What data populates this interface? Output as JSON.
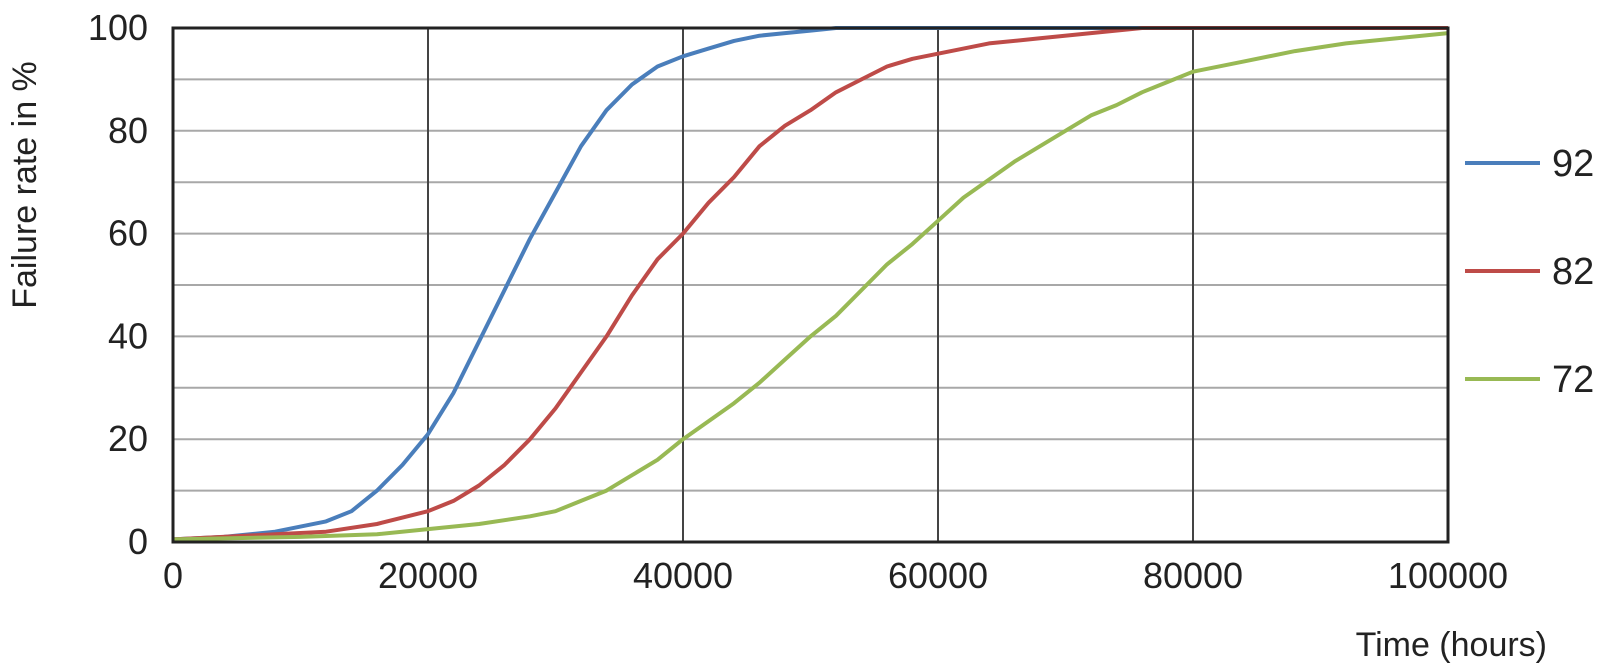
{
  "chart_data": {
    "type": "line",
    "title": "",
    "xlabel": "Time (hours)",
    "ylabel": "Failure rate in %",
    "xlim": [
      0,
      100000
    ],
    "ylim": [
      0,
      100
    ],
    "xticks": [
      "0",
      "20000",
      "40000",
      "60000",
      "80000",
      "100000"
    ],
    "yticks": [
      "0",
      "20",
      "40",
      "60",
      "80",
      "100"
    ],
    "grid": {
      "horizontal_minor_step": 10,
      "vertical_step": 20000
    },
    "legend_position": "right",
    "series": [
      {
        "name": "92",
        "color": "#4a7ebb",
        "x": [
          0,
          4000,
          8000,
          10000,
          12000,
          14000,
          16000,
          18000,
          20000,
          22000,
          24000,
          26000,
          28000,
          30000,
          32000,
          34000,
          36000,
          38000,
          40000,
          42000,
          44000,
          46000,
          48000,
          50000,
          52000,
          60000,
          70000,
          80000,
          90000,
          100000
        ],
        "y": [
          0.5,
          1,
          2,
          3,
          4,
          6,
          10,
          15,
          21,
          29,
          39,
          49,
          59,
          68,
          77,
          84,
          89,
          92.5,
          94.5,
          96,
          97.5,
          98.5,
          99,
          99.5,
          100,
          100,
          100,
          100,
          100,
          100
        ]
      },
      {
        "name": "82",
        "color": "#be4b48",
        "x": [
          0,
          8000,
          12000,
          16000,
          20000,
          22000,
          24000,
          26000,
          28000,
          30000,
          32000,
          34000,
          36000,
          38000,
          40000,
          42000,
          44000,
          46000,
          48000,
          50000,
          52000,
          54000,
          56000,
          58000,
          60000,
          64000,
          68000,
          72000,
          76000,
          100000
        ],
        "y": [
          0.5,
          1.5,
          2,
          3.5,
          6,
          8,
          11,
          15,
          20,
          26,
          33,
          40,
          48,
          55,
          60,
          66,
          71,
          77,
          81,
          84,
          87.5,
          90,
          92.5,
          94,
          95,
          97,
          98,
          99,
          100,
          100
        ]
      },
      {
        "name": "72",
        "color": "#98b954",
        "x": [
          0,
          10000,
          16000,
          20000,
          24000,
          28000,
          30000,
          32000,
          34000,
          36000,
          38000,
          40000,
          42000,
          44000,
          46000,
          48000,
          50000,
          52000,
          54000,
          56000,
          58000,
          60000,
          62000,
          64000,
          66000,
          68000,
          70000,
          72000,
          74000,
          76000,
          78000,
          80000,
          84000,
          88000,
          92000,
          96000,
          100000
        ],
        "y": [
          0.5,
          1,
          1.5,
          2.5,
          3.5,
          5,
          6,
          8,
          10,
          13,
          16,
          20,
          23.5,
          27,
          31,
          35.5,
          40,
          44,
          49,
          54,
          58,
          62.5,
          67,
          70.5,
          74,
          77,
          80,
          83,
          85,
          87.5,
          89.5,
          91.5,
          93.5,
          95.5,
          97,
          98,
          99
        ]
      }
    ]
  }
}
